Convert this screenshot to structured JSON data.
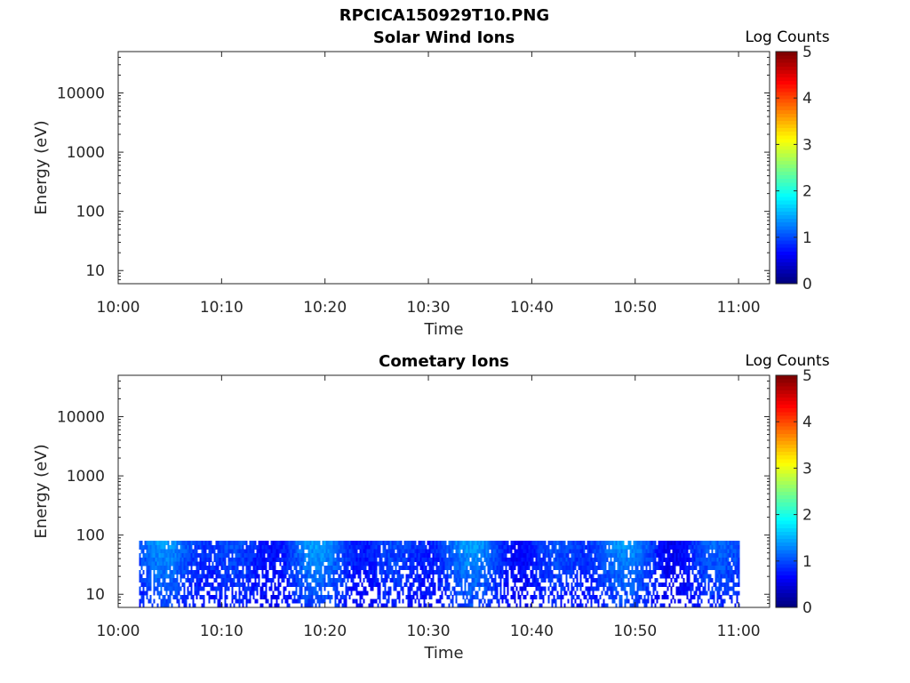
{
  "page": {
    "title": "RPCICA150929T10.PNG"
  },
  "chart_data": [
    {
      "type": "heatmap",
      "title": "Solar Wind Ions",
      "xlabel": "Time",
      "ylabel": "Energy (eV)",
      "y_scale": "log",
      "xlim": [
        "10:00",
        "11:03"
      ],
      "ylim": [
        6,
        50000
      ],
      "x_ticks": [
        "10:00",
        "10:10",
        "10:20",
        "10:30",
        "10:40",
        "10:50",
        "11:00"
      ],
      "y_ticks": [
        "10",
        "100",
        "1000",
        "10000"
      ],
      "colorbar": {
        "label": "Log Counts",
        "range": [
          0,
          5
        ],
        "ticks": [
          "0",
          "1",
          "2",
          "3",
          "4",
          "5"
        ],
        "colormap": "jet"
      },
      "data_extent": null
    },
    {
      "type": "heatmap",
      "title": "Cometary Ions",
      "xlabel": "Time",
      "ylabel": "Energy (eV)",
      "y_scale": "log",
      "xlim": [
        "10:00",
        "11:03"
      ],
      "ylim": [
        6,
        50000
      ],
      "x_ticks": [
        "10:00",
        "10:10",
        "10:20",
        "10:30",
        "10:40",
        "10:50",
        "11:00"
      ],
      "y_ticks": [
        "10",
        "100",
        "1000",
        "10000"
      ],
      "colorbar": {
        "label": "Log Counts",
        "range": [
          0,
          5
        ],
        "ticks": [
          "0",
          "1",
          "2",
          "3",
          "4",
          "5"
        ],
        "colormap": "jet"
      },
      "data_extent": {
        "time_start": "10:02",
        "time_end": "11:00",
        "energy_min": 6,
        "energy_max": 80
      },
      "log_counts_range": [
        0,
        2
      ]
    }
  ]
}
